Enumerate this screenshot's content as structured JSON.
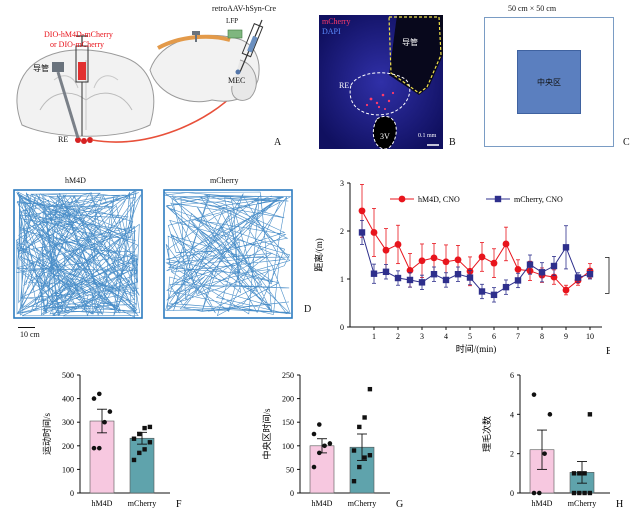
{
  "panelA": {
    "virus_left_line1": "DIO-hM4D-mCherry",
    "virus_left_line2": "or DIO-mCherry",
    "catheter_label": "导管",
    "re_label": "RE",
    "virus_right": "retroAAV-hSyn-Cre",
    "lfp_label": "LFP",
    "mec_label": "MEC",
    "letter": "A"
  },
  "panelB": {
    "mcherry_label": "mCherry",
    "dapi_label": "DAPI",
    "catheter_label": "导管",
    "re_label": "RE",
    "v3_label": "3V",
    "scale_label": "0.1 mm",
    "letter": "B"
  },
  "panelC": {
    "size_label": "50 cm × 50 cm",
    "center_label": "中央区",
    "letter": "C"
  },
  "panelD": {
    "left_title": "hM4D",
    "right_title": "mCherry",
    "scale_label": "10 cm",
    "letter": "D"
  },
  "chart_data": [
    {
      "type": "line",
      "panel": "E",
      "xlabel": "时间/(min)",
      "ylabel": "距离/(m)",
      "xlim": [
        0,
        10.5
      ],
      "ylim": [
        0,
        3
      ],
      "xticks": [
        1,
        2,
        3,
        4,
        5,
        6,
        7,
        8,
        9,
        10
      ],
      "yticks": [
        0,
        1,
        2,
        3
      ],
      "x": [
        0.5,
        1,
        1.5,
        2,
        2.5,
        3,
        3.5,
        4,
        4.5,
        5,
        5.5,
        6,
        6.5,
        7,
        7.5,
        8,
        8.5,
        9,
        9.5,
        10
      ],
      "series": [
        {
          "name": "hM4D, CNO",
          "color": "#e8141c",
          "marker": "circle",
          "values": [
            2.42,
            1.97,
            1.6,
            1.72,
            1.18,
            1.38,
            1.44,
            1.36,
            1.4,
            1.16,
            1.46,
            1.33,
            1.73,
            1.2,
            1.17,
            1.08,
            1.04,
            0.77,
            0.97,
            1.17
          ],
          "errors": [
            0.55,
            0.5,
            0.45,
            0.4,
            0.35,
            0.35,
            0.3,
            0.35,
            0.3,
            0.3,
            0.3,
            0.3,
            0.35,
            0.2,
            0.2,
            0.15,
            0.15,
            0.1,
            0.1,
            0.15
          ]
        },
        {
          "name": "mCherry, CNO",
          "color": "#2e2f8c",
          "marker": "square",
          "values": [
            1.97,
            1.11,
            1.15,
            1.02,
            0.98,
            0.93,
            1.1,
            0.98,
            1.1,
            1.03,
            0.74,
            0.67,
            0.83,
            0.97,
            1.3,
            1.14,
            1.27,
            1.66,
            1.03,
            1.1
          ],
          "errors": [
            0.25,
            0.2,
            0.15,
            0.15,
            0.15,
            0.15,
            0.15,
            0.15,
            0.15,
            0.15,
            0.15,
            0.15,
            0.15,
            0.15,
            0.2,
            0.2,
            0.2,
            0.45,
            0.1,
            0.1
          ]
        }
      ],
      "annotation": "b",
      "letter": "E"
    },
    {
      "type": "bar",
      "panel": "F",
      "ylabel": "运动时间/s",
      "ylim": [
        0,
        500
      ],
      "yticks": [
        0,
        100,
        200,
        300,
        400,
        500
      ],
      "categories": [
        "hM4D",
        "mCherry"
      ],
      "values": [
        305,
        232
      ],
      "errors": [
        50,
        25
      ],
      "colors": [
        "#f7c8e0",
        "#5fa3ac"
      ],
      "points": [
        [
          190,
          190,
          300,
          345,
          400,
          420
        ],
        [
          140,
          170,
          185,
          215,
          230,
          250,
          275,
          280
        ]
      ],
      "letter": "F"
    },
    {
      "type": "bar",
      "panel": "G",
      "ylabel": "中央区时间/s",
      "ylim": [
        0,
        250
      ],
      "yticks": [
        0,
        50,
        100,
        150,
        200,
        250
      ],
      "categories": [
        "hM4D",
        "mCherry"
      ],
      "values": [
        100,
        97
      ],
      "errors": [
        15,
        28
      ],
      "colors": [
        "#f7c8e0",
        "#5fa3ac"
      ],
      "points": [
        [
          55,
          85,
          100,
          105,
          125,
          145
        ],
        [
          25,
          55,
          75,
          80,
          90,
          140,
          160,
          220
        ]
      ],
      "letter": "G"
    },
    {
      "type": "bar",
      "panel": "H",
      "ylabel": "理毛次数",
      "ylim": [
        0,
        6
      ],
      "yticks": [
        0,
        2,
        4,
        6
      ],
      "categories": [
        "hM4D",
        "mCherry"
      ],
      "values": [
        2.2,
        1.05
      ],
      "errors": [
        1.0,
        0.55
      ],
      "colors": [
        "#f7c8e0",
        "#5fa3ac"
      ],
      "points": [
        [
          0,
          0,
          2,
          4,
          5
        ],
        [
          0,
          0,
          0,
          0,
          1,
          1,
          1,
          4
        ]
      ],
      "letter": "H"
    }
  ]
}
